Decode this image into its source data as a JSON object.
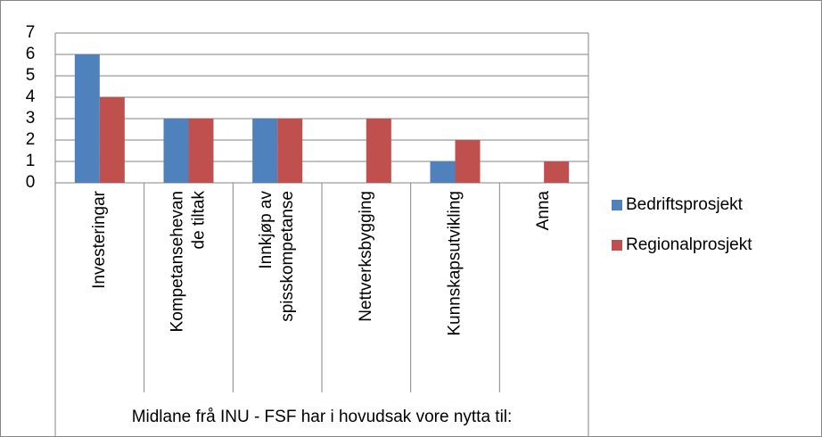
{
  "chart_data": {
    "type": "bar",
    "categories": [
      "Investeringar",
      "Kompetansehevan\nde tiltak",
      "Innkjøp av\nspisskompetanse",
      "Nettverksbygging",
      "Kunnskapsutvikling",
      "Anna"
    ],
    "x_label": "Midlane frå INU - FSF har i hovudsak vore nytta til:",
    "series": [
      {
        "name": "Bedriftsprosjekt",
        "color": "#4f81bd",
        "values": [
          6,
          3,
          3,
          0,
          1,
          0
        ]
      },
      {
        "name": "Regionalprosjekt",
        "color": "#c0504d",
        "values": [
          4,
          3,
          3,
          3,
          2,
          1
        ]
      }
    ],
    "ylim": [
      0,
      7
    ],
    "yticks": [
      0,
      1,
      2,
      3,
      4,
      5,
      6,
      7
    ],
    "grid": true,
    "legend": "right"
  }
}
